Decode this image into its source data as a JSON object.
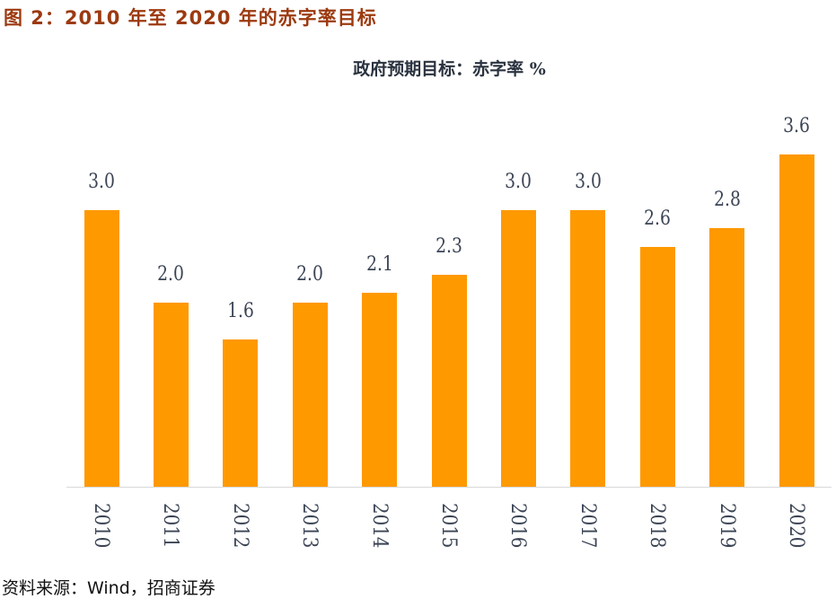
{
  "figure": {
    "title": "图 2：2010 年至 2020 年的赤字率目标",
    "source": "资料来源：Wind，招商证券"
  },
  "colors": {
    "bar": "#ff9900",
    "title": "#9c3a10",
    "text": "#3b4455"
  },
  "chart_data": {
    "type": "bar",
    "title": "政府预期目标：赤字率 %",
    "xlabel": "",
    "ylabel": "",
    "categories": [
      "2010",
      "2011",
      "2012",
      "2013",
      "2014",
      "2015",
      "2016",
      "2017",
      "2018",
      "2019",
      "2020"
    ],
    "values": [
      3.0,
      2.0,
      1.6,
      2.0,
      2.1,
      2.3,
      3.0,
      3.0,
      2.6,
      2.8,
      3.6
    ],
    "value_labels": [
      "3.0",
      "2.0",
      "1.6",
      "2.0",
      "2.1",
      "2.3",
      "3.0",
      "3.0",
      "2.6",
      "2.8",
      "3.6"
    ],
    "ylim": [
      0,
      4
    ],
    "grid": false,
    "legend": "none",
    "data_labels": true,
    "x_tick_rotation": 90
  }
}
